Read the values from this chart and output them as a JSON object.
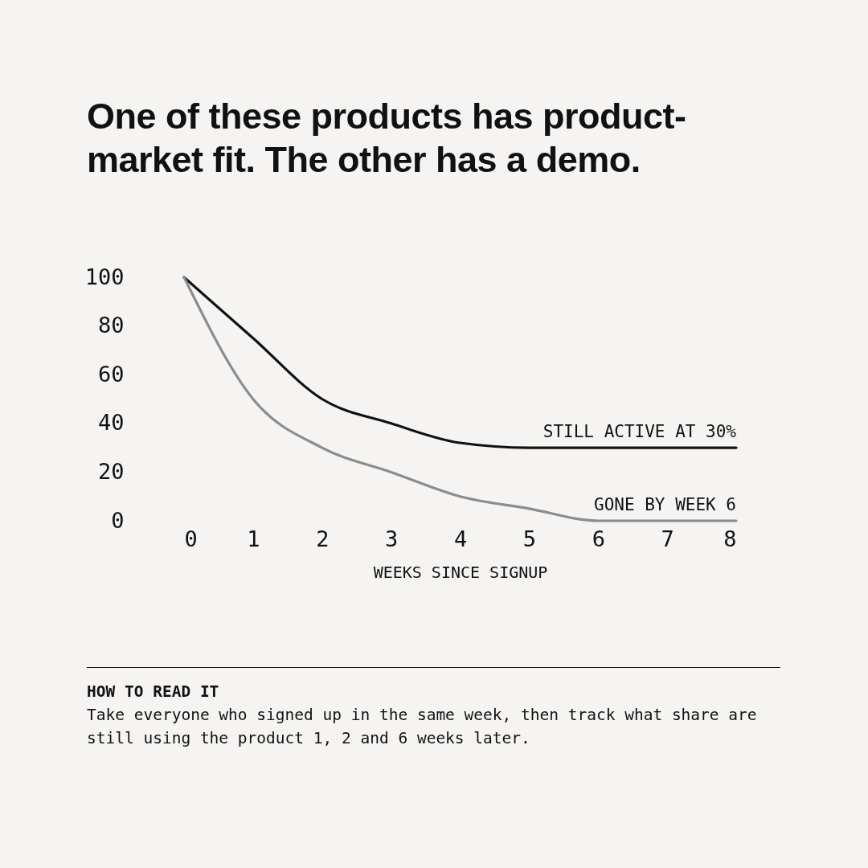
{
  "chart_data": {
    "type": "line",
    "title": "One of these products has product-market fit. The other has a demo.",
    "xlabel": "WEEKS SINCE SIGNUP",
    "x": [
      0,
      1,
      2,
      3,
      4,
      5,
      6,
      7,
      8
    ],
    "series": [
      {
        "name": "STILL ACTIVE AT 30%",
        "color": "#111111",
        "values": [
          100,
          75,
          50,
          40,
          32,
          30,
          30,
          30,
          30
        ]
      },
      {
        "name": "GONE BY WEEK 6",
        "color": "#8c8c8c",
        "values": [
          100,
          50,
          30,
          20,
          10,
          5,
          0,
          0,
          0
        ]
      }
    ],
    "xlim": [
      0,
      8
    ],
    "xticks": [
      0,
      1,
      2,
      3,
      4,
      5,
      6,
      7,
      8
    ],
    "ylim": [
      0,
      100
    ],
    "yticks": [
      0,
      20,
      40,
      60,
      80,
      100
    ],
    "annotations": [
      "HOW TO READ IT",
      "Take everyone who signed up in the same week, then track what share are still using the product 1, 2 and 6 weeks later."
    ]
  }
}
